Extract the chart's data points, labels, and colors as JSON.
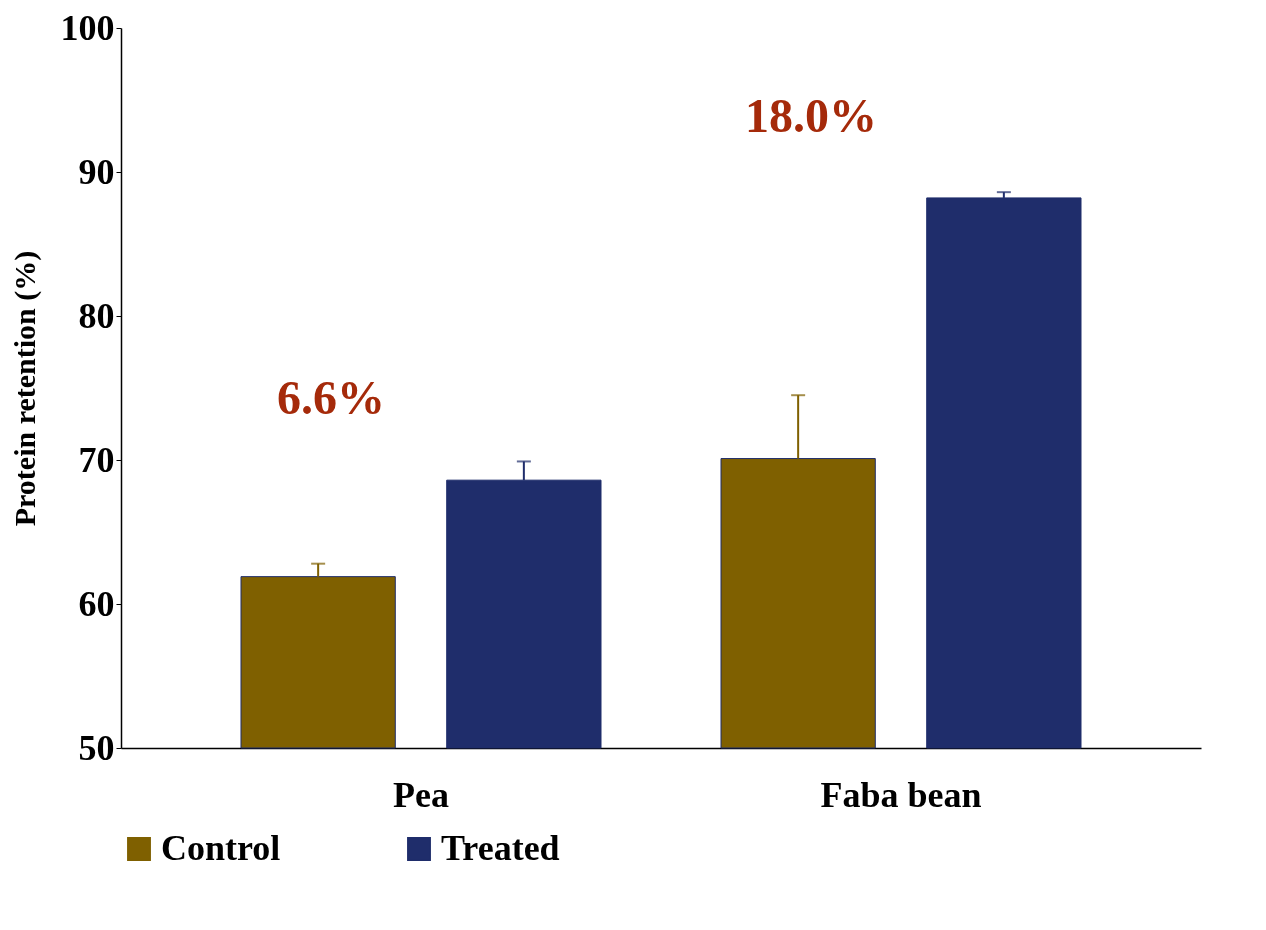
{
  "chart_data": {
    "type": "bar",
    "ylabel": "Protein retention (%)",
    "categories": [
      "Pea",
      "Faba bean"
    ],
    "series": [
      {
        "name": "Control",
        "color": "#7f6000",
        "values": [
          61.9,
          70.1
        ],
        "errors": [
          [
            61.9,
            62.8
          ],
          [
            70.1,
            74.5
          ]
        ]
      },
      {
        "name": "Treated",
        "color": "#1f2d6b",
        "values": [
          68.6,
          88.2
        ],
        "errors": [
          [
            68.6,
            69.9
          ],
          [
            88.2,
            88.6
          ]
        ]
      }
    ],
    "ylim": [
      50,
      100
    ],
    "yticks": [
      50,
      60,
      70,
      80,
      90,
      100
    ],
    "grid": false,
    "legend": "bottom",
    "annotations": [
      "6.6%",
      "18.0%"
    ]
  }
}
